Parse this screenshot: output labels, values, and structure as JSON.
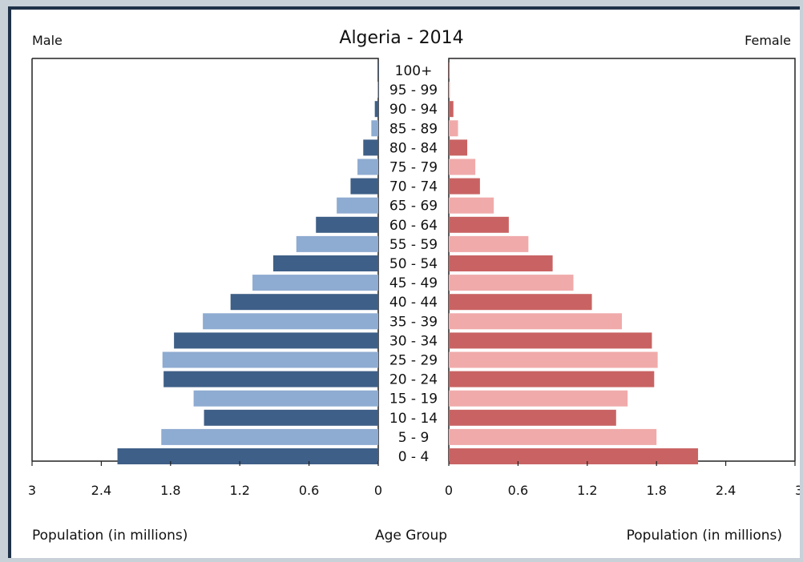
{
  "chart_data": {
    "type": "bar",
    "title": "Algeria - 2014",
    "left_label": "Male",
    "right_label": "Female",
    "xlabel_left": "Population (in millions)",
    "xlabel_center": "Age Group",
    "xlabel_right": "Population (in millions)",
    "xlim": [
      0,
      3
    ],
    "x_ticks": [
      "3",
      "2.4",
      "1.8",
      "1.2",
      "0.6",
      "0"
    ],
    "x_ticks_right": [
      "0",
      "0.6",
      "1.2",
      "1.8",
      "2.4",
      "3"
    ],
    "x_tick_values": [
      3,
      2.4,
      1.8,
      1.2,
      0.6,
      0
    ],
    "x_tick_values_right": [
      0,
      0.6,
      1.2,
      1.8,
      2.4,
      3
    ],
    "categories": [
      "100+",
      "95 - 99",
      "90 - 94",
      "85 - 89",
      "80 - 84",
      "75 - 79",
      "70 - 74",
      "65 - 69",
      "60 - 64",
      "55 - 59",
      "50 - 54",
      "45 - 49",
      "40 - 44",
      "35 - 39",
      "30 - 34",
      "25 - 29",
      "20 - 24",
      "15 - 19",
      "10 - 14",
      "5 - 9",
      "0 - 4"
    ],
    "series": [
      {
        "side": "left",
        "values": [
          0.002,
          0.005,
          0.03,
          0.06,
          0.13,
          0.18,
          0.24,
          0.36,
          0.54,
          0.71,
          0.91,
          1.09,
          1.28,
          1.52,
          1.77,
          1.87,
          1.86,
          1.6,
          1.51,
          1.88,
          2.26
        ]
      },
      {
        "side": "right",
        "values": [
          0.003,
          0.01,
          0.04,
          0.08,
          0.16,
          0.23,
          0.27,
          0.39,
          0.52,
          0.69,
          0.9,
          1.08,
          1.24,
          1.5,
          1.76,
          1.81,
          1.78,
          1.55,
          1.45,
          1.8,
          2.16
        ]
      }
    ],
    "colors": {
      "male_dark": "#3e5f87",
      "male_light": "#8eabd1",
      "female_dark": "#c96363",
      "female_light": "#f0aaaa"
    },
    "grid": false
  }
}
